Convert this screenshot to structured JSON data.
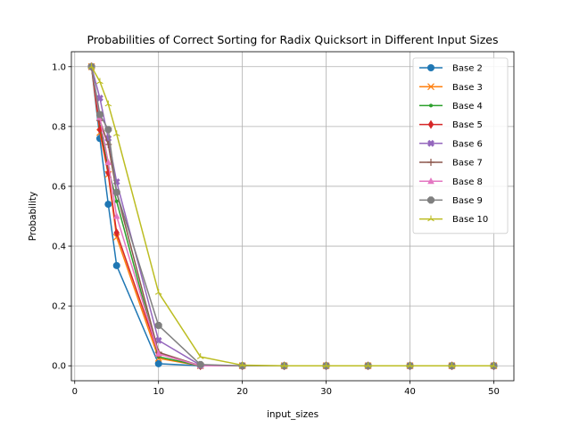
{
  "chart_data": {
    "type": "line",
    "title": "Probabilities of Correct Sorting for Radix Quicksort in Different Input Sizes",
    "xlabel": "input_sizes",
    "ylabel": "Probability",
    "xlim": [
      -0.4,
      52.4
    ],
    "ylim": [
      -0.05,
      1.05
    ],
    "xticks": [
      0,
      10,
      20,
      30,
      40,
      50
    ],
    "yticks": [
      0.0,
      0.2,
      0.4,
      0.6,
      0.8,
      1.0
    ],
    "xtick_labels": [
      "0",
      "10",
      "20",
      "30",
      "40",
      "50"
    ],
    "ytick_labels": [
      "0.0",
      "0.2",
      "0.4",
      "0.6",
      "0.8",
      "1.0"
    ],
    "grid": true,
    "legend_position": "top-right",
    "x": [
      2,
      3,
      4,
      5,
      10,
      15,
      20,
      25,
      30,
      35,
      40,
      45,
      50
    ],
    "series": [
      {
        "name": "Base 2",
        "color": "#1f77b4",
        "marker": "circle",
        "values": [
          1.0,
          0.76,
          0.54,
          0.335,
          0.007,
          0.0,
          0.0,
          0.0,
          0.0,
          0.0,
          0.0,
          0.0,
          0.0
        ]
      },
      {
        "name": "Base 3",
        "color": "#ff7f0e",
        "marker": "x",
        "values": [
          1.0,
          0.78,
          0.64,
          0.43,
          0.025,
          0.0,
          0.0,
          0.0,
          0.0,
          0.0,
          0.0,
          0.0,
          0.0
        ]
      },
      {
        "name": "Base 4",
        "color": "#2ca02c",
        "marker": "point",
        "values": [
          1.0,
          0.8,
          0.66,
          0.55,
          0.03,
          0.0,
          0.0,
          0.0,
          0.0,
          0.0,
          0.0,
          0.0,
          0.0
        ]
      },
      {
        "name": "Base 5",
        "color": "#d62728",
        "marker": "diamond",
        "values": [
          1.0,
          0.79,
          0.645,
          0.445,
          0.04,
          0.0,
          0.0,
          0.0,
          0.0,
          0.0,
          0.0,
          0.0,
          0.0
        ]
      },
      {
        "name": "Base 6",
        "color": "#9467bd",
        "marker": "plusfill",
        "values": [
          1.0,
          0.895,
          0.76,
          0.615,
          0.085,
          0.002,
          0.0,
          0.0,
          0.0,
          0.0,
          0.0,
          0.0,
          0.0
        ]
      },
      {
        "name": "Base 7",
        "color": "#8c564b",
        "marker": "plus",
        "values": [
          1.0,
          0.82,
          0.74,
          0.58,
          0.045,
          0.0,
          0.0,
          0.0,
          0.0,
          0.0,
          0.0,
          0.0,
          0.0
        ]
      },
      {
        "name": "Base 8",
        "color": "#e377c2",
        "marker": "triangle",
        "values": [
          1.0,
          0.83,
          0.68,
          0.5,
          0.04,
          0.0,
          0.0,
          0.0,
          0.0,
          0.0,
          0.0,
          0.0,
          0.0
        ]
      },
      {
        "name": "Base 9",
        "color": "#7f7f7f",
        "marker": "octagon",
        "values": [
          1.0,
          0.84,
          0.79,
          0.58,
          0.135,
          0.004,
          0.0,
          0.0,
          0.0,
          0.0,
          0.0,
          0.0,
          0.0
        ]
      },
      {
        "name": "Base 10",
        "color": "#bcbd22",
        "marker": "tri",
        "values": [
          1.0,
          0.95,
          0.875,
          0.775,
          0.245,
          0.03,
          0.002,
          0.0,
          0.0,
          0.0,
          0.0,
          0.0,
          0.0
        ]
      }
    ]
  }
}
